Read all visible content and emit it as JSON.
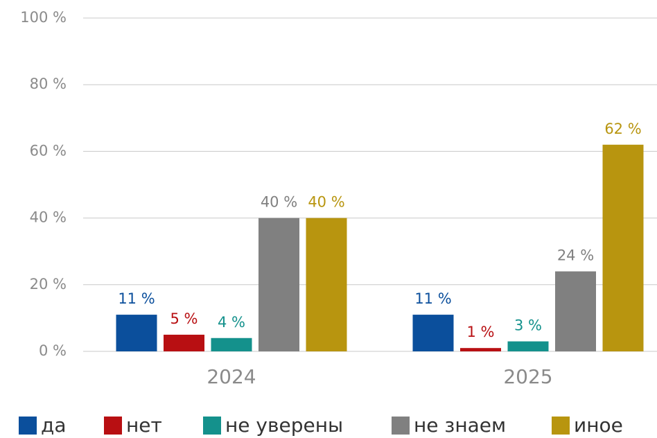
{
  "chart_data": {
    "type": "bar",
    "categories": [
      "2024",
      "2025"
    ],
    "series": [
      {
        "name": "да",
        "color": "#0b4f9c",
        "values": [
          11,
          11
        ],
        "value_labels": [
          "11 %",
          "11 %"
        ]
      },
      {
        "name": "нет",
        "color": "#b80f12",
        "values": [
          5,
          1
        ],
        "value_labels": [
          "5 %",
          "1 %"
        ]
      },
      {
        "name": "не уверены",
        "color": "#14918c",
        "values": [
          4,
          3
        ],
        "value_labels": [
          "4 %",
          "3 %"
        ]
      },
      {
        "name": "не знаем",
        "color": "#808080",
        "values": [
          40,
          24
        ],
        "value_labels": [
          "40 %",
          "24 %"
        ]
      },
      {
        "name": "иное",
        "color": "#b8950f",
        "values": [
          40,
          62
        ],
        "value_labels": [
          "40 %",
          "62 %"
        ]
      }
    ],
    "ylim": [
      0,
      100
    ],
    "yticks": [
      {
        "value": 0,
        "label": "0 %"
      },
      {
        "value": 20,
        "label": "20 %"
      },
      {
        "value": 40,
        "label": "40 %"
      },
      {
        "value": 60,
        "label": "60 %"
      },
      {
        "value": 80,
        "label": "80 %"
      },
      {
        "value": 100,
        "label": "100 %"
      }
    ],
    "grid": true,
    "legend": "bottom"
  }
}
